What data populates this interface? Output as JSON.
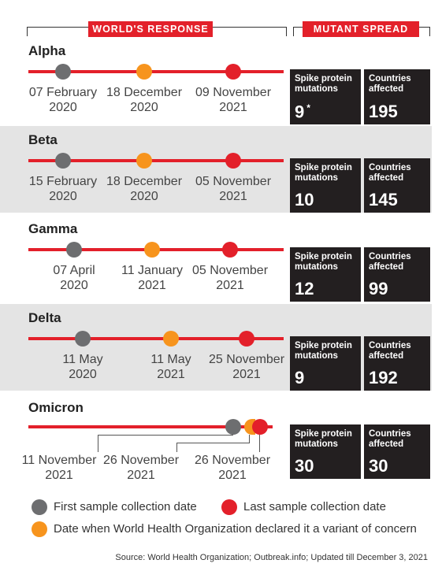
{
  "headers": {
    "worlds_response": "WORLD'S RESPONSE",
    "mutant_spread": "MUTANT SPREAD"
  },
  "box_labels": {
    "spike": "Spike protein mutations",
    "countries": "Countries affected"
  },
  "colors": {
    "first": "#6d6e70",
    "who": "#f7941d",
    "last": "#e3202a",
    "accent": "#e3202a"
  },
  "variants": [
    {
      "name": "Alpha",
      "first": [
        "07 February",
        "2020"
      ],
      "who": [
        "18 December",
        "2020"
      ],
      "last": [
        "09 November",
        "2021"
      ],
      "spike": "9",
      "spike_note": "*",
      "countries": "195"
    },
    {
      "name": "Beta",
      "first": [
        "15 February",
        "2020"
      ],
      "who": [
        "18 December",
        "2020"
      ],
      "last": [
        "05 November",
        "2021"
      ],
      "spike": "10",
      "spike_note": "",
      "countries": "145"
    },
    {
      "name": "Gamma",
      "first": [
        "07 April",
        "2020"
      ],
      "who": [
        "11 January",
        "2021"
      ],
      "last": [
        "05 November",
        "2021"
      ],
      "spike": "12",
      "spike_note": "",
      "countries": "99"
    },
    {
      "name": "Delta",
      "first": [
        "11 May",
        "2020"
      ],
      "who": [
        "11 May",
        "2021"
      ],
      "last": [
        "25 November",
        "2021"
      ],
      "spike": "9",
      "spike_note": "",
      "countries": "192"
    },
    {
      "name": "Omicron",
      "first": [
        "11 November",
        "2021"
      ],
      "who": [
        "26 November",
        "2021"
      ],
      "last": [
        "26 November",
        "2021"
      ],
      "spike": "30",
      "spike_note": "",
      "countries": "30"
    }
  ],
  "legend": {
    "first": "First sample collection date",
    "last": "Last sample collection date",
    "who": "Date when World Health Organization declared it a variant of concern",
    "first_icon": "grey-dot-icon",
    "last_icon": "red-dot-icon",
    "who_icon": "orange-dot-icon"
  },
  "source": "Source: World Health Organization; Outbreak.info; Updated till December 3, 2021"
}
